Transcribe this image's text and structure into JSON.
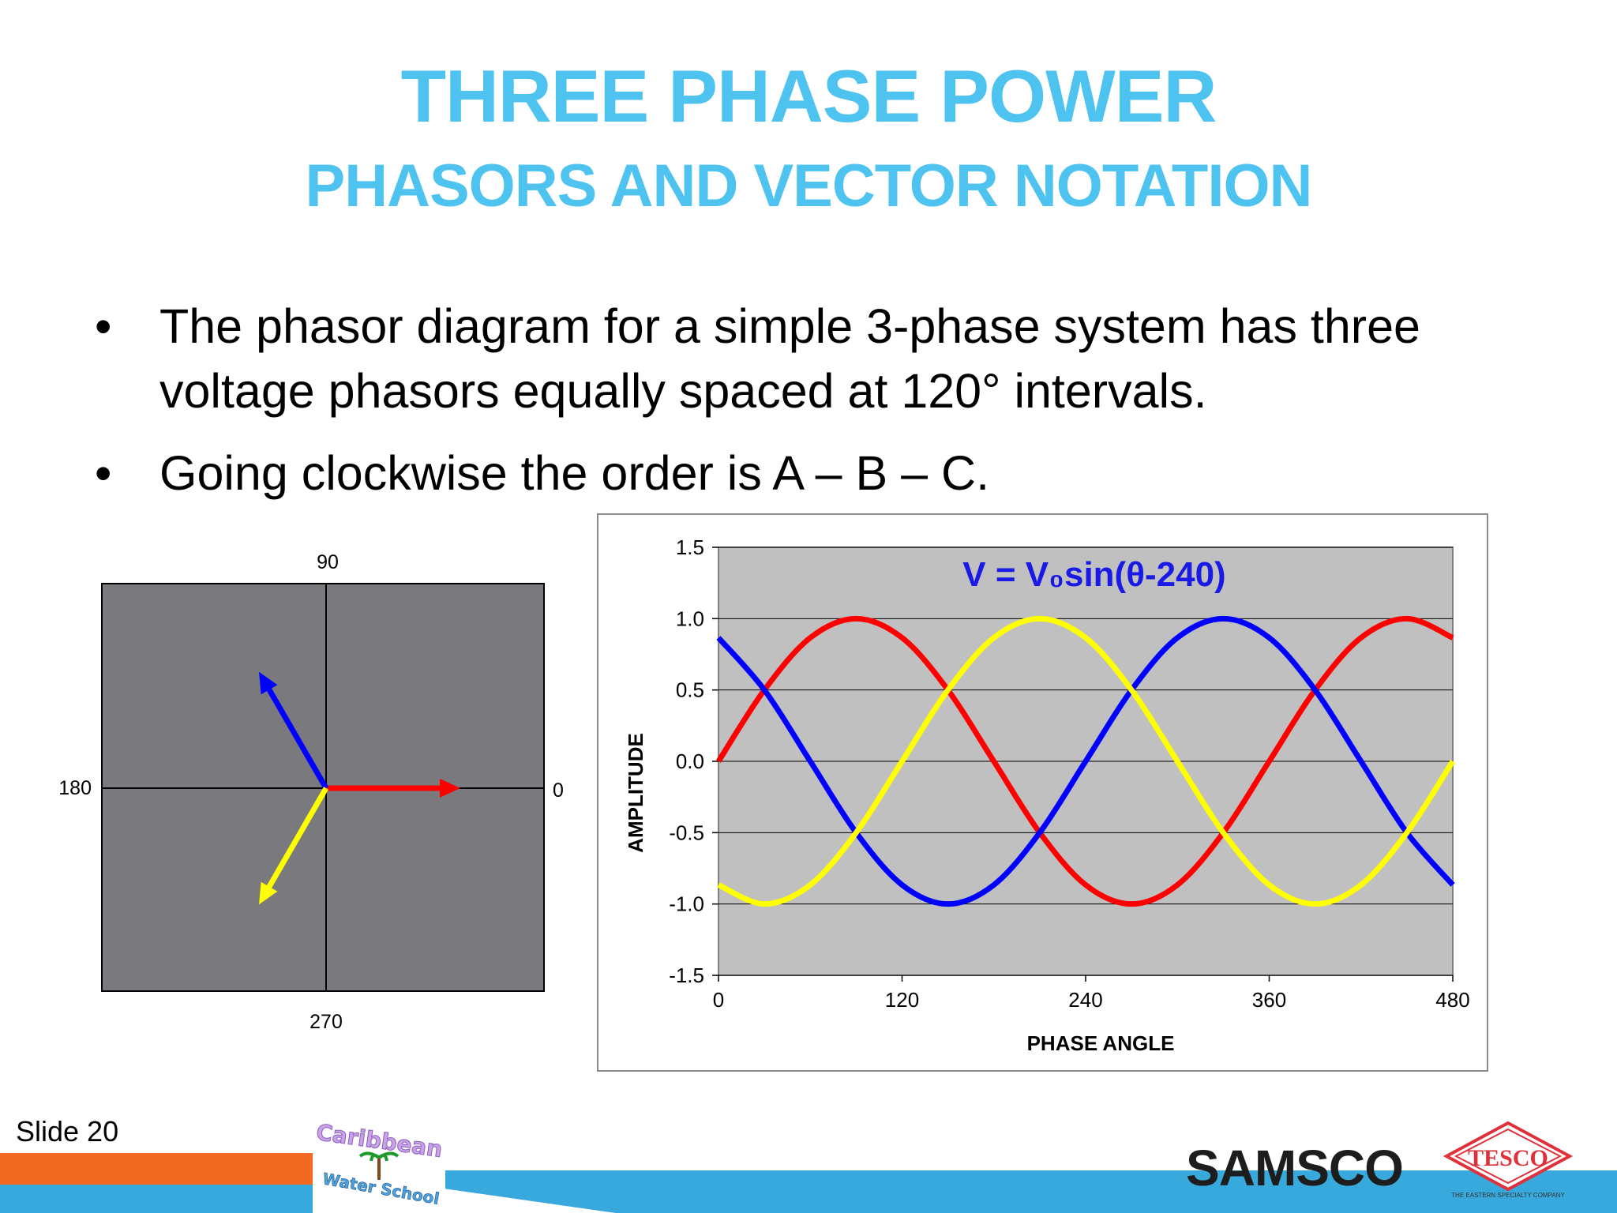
{
  "slide": {
    "title": "THREE PHASE POWER",
    "subtitle": "PHASORS AND VECTOR NOTATION",
    "bullet_symbol": "•",
    "bullets": [
      "The phasor diagram for a simple 3-phase system has three voltage phasors equally spaced at 120° intervals.",
      "Going clockwise the order is A – B – C."
    ],
    "slide_number": "Slide 20"
  },
  "phasor_diagram": {
    "label_top": "90",
    "label_left": "180",
    "label_right": "0",
    "label_bottom": "270",
    "phasors": [
      {
        "angle_deg": 0,
        "color": "#ff0000"
      },
      {
        "angle_deg": 120,
        "color": "#0000ff"
      },
      {
        "angle_deg": 240,
        "color": "#ffff00"
      }
    ],
    "background": "#7a7a7e"
  },
  "chart_data": {
    "type": "line",
    "annotation": "V = V₀sin(θ-240)",
    "xlabel": "PHASE ANGLE",
    "ylabel": "AMPLITUDE",
    "xlim": [
      0,
      480
    ],
    "ylim": [
      -1.5,
      1.5
    ],
    "x_ticks": [
      "0",
      "120",
      "240",
      "360",
      "480"
    ],
    "y_ticks": [
      "1.5",
      "1.0",
      "0.5",
      "0.0",
      "-0.5",
      "-1.0",
      "-1.5"
    ],
    "grid": true,
    "series": [
      {
        "color": "#ff0000",
        "x": [
          0,
          30,
          60,
          90,
          120,
          150,
          180,
          210,
          240,
          270,
          300,
          330,
          360,
          390,
          420,
          450,
          480
        ],
        "values": [
          0.0,
          0.5,
          0.866,
          1.0,
          0.866,
          0.5,
          0.0,
          -0.5,
          -0.866,
          -1.0,
          -0.866,
          -0.5,
          0.0,
          0.5,
          0.866,
          1.0,
          0.866
        ]
      },
      {
        "color": "#0000ff",
        "x": [
          0,
          30,
          60,
          90,
          120,
          150,
          180,
          210,
          240,
          270,
          300,
          330,
          360,
          390,
          420,
          450,
          480
        ],
        "values": [
          0.866,
          0.5,
          0.0,
          -0.5,
          -0.866,
          -1.0,
          -0.866,
          -0.5,
          0.0,
          0.5,
          0.866,
          1.0,
          0.866,
          0.5,
          0.0,
          -0.5,
          -0.866
        ]
      },
      {
        "color": "#ffff00",
        "x": [
          0,
          30,
          60,
          90,
          120,
          150,
          180,
          210,
          240,
          270,
          300,
          330,
          360,
          390,
          420,
          450,
          480
        ],
        "values": [
          -0.866,
          -1.0,
          -0.866,
          -0.5,
          0.0,
          0.5,
          0.866,
          1.0,
          0.866,
          0.5,
          0.0,
          -0.5,
          -0.866,
          -1.0,
          -0.866,
          -0.5,
          0.0
        ]
      }
    ],
    "plot_background": "#c0c0c0"
  },
  "footer": {
    "logo_caribbean_line1": "Caribbean",
    "logo_caribbean_line2": "Water School",
    "logo_samsco": "SAMSCO",
    "logo_tesco": "TESCO",
    "logo_tesco_tagline": "THE EASTERN SPECIALTY COMPANY",
    "colors": {
      "orange": "#f26a22",
      "blue": "#38a9dc"
    }
  }
}
